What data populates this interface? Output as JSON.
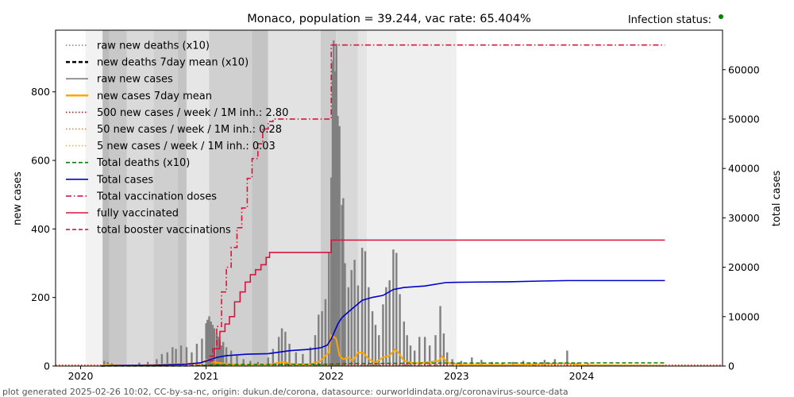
{
  "chart_data": {
    "type": "line",
    "title": "Monaco, population = 39.244, vac rate: 65.404%",
    "status_label": "Infection status:",
    "status_color": "#008000",
    "ylabel_left": "new cases",
    "ylabel_right": "total cases",
    "footer": "plot generated 2025-02-26 10:02, CC-by-sa-nc, origin: dukun.de/corona, datasource: ourworldindata.org/coronavirus-source-data",
    "x_range": [
      "2019-10-20",
      "2025-02-15"
    ],
    "y_left_range": [
      0,
      980
    ],
    "y_right_range": [
      0,
      68000
    ],
    "x_ticks": [
      "2020",
      "2021",
      "2022",
      "2023",
      "2024"
    ],
    "y_left_ticks": [
      "0",
      "200",
      "400",
      "600",
      "800"
    ],
    "y_right_ticks": [
      "0",
      "10000",
      "20000",
      "30000",
      "40000",
      "50000",
      "60000"
    ],
    "legend": [
      {
        "label": "raw new deaths (x10)",
        "color": "#808080",
        "style": "dotted"
      },
      {
        "label": "new deaths 7day mean (x10)",
        "color": "#000000",
        "style": "dashed"
      },
      {
        "label": "raw new cases",
        "color": "#808080",
        "style": "solid"
      },
      {
        "label": "new cases 7day mean",
        "color": "#ffa500",
        "style": "solid"
      },
      {
        "label": "500 new cases / week / 1M inh.: 2.80",
        "color": "#ff0000",
        "style": "dotted"
      },
      {
        "label": "50 new cases / week / 1M inh.: 0.28",
        "color": "#e08020",
        "style": "dotted"
      },
      {
        "label": "5 new cases / week / 1M inh.: 0.03",
        "color": "#f0c000",
        "style": "dotted"
      },
      {
        "label": "Total deaths (x10)",
        "color": "#008000",
        "style": "dashed"
      },
      {
        "label": "Total cases",
        "color": "#0000cc",
        "style": "solid"
      },
      {
        "label": "Total vaccination doses",
        "color": "#dc143c",
        "style": "dashdot"
      },
      {
        "label": "fully vaccinated",
        "color": "#dc143c",
        "style": "solid"
      },
      {
        "label": "total booster vaccinations",
        "color": "#dc143c",
        "style": "dashed"
      }
    ],
    "background_bands": [
      {
        "start": "2020-01-15",
        "end": "2020-03-05",
        "shade": "#f2f2f2"
      },
      {
        "start": "2020-03-05",
        "end": "2020-03-25",
        "shade": "#bbbbbb"
      },
      {
        "start": "2020-03-25",
        "end": "2020-05-15",
        "shade": "#c8c8c8"
      },
      {
        "start": "2020-05-15",
        "end": "2020-08-01",
        "shade": "#dadada"
      },
      {
        "start": "2020-08-01",
        "end": "2020-10-10",
        "shade": "#cfcfcf"
      },
      {
        "start": "2020-10-10",
        "end": "2020-11-05",
        "shade": "#c4c4c4"
      },
      {
        "start": "2020-11-05",
        "end": "2021-01-10",
        "shade": "#e6e6e6"
      },
      {
        "start": "2021-01-10",
        "end": "2021-05-15",
        "shade": "#d0d0d0"
      },
      {
        "start": "2021-05-15",
        "end": "2021-07-01",
        "shade": "#c4c4c4"
      },
      {
        "start": "2021-07-01",
        "end": "2021-12-01",
        "shade": "#e2e2e2"
      },
      {
        "start": "2021-12-01",
        "end": "2022-01-15",
        "shade": "#cccccc"
      },
      {
        "start": "2022-01-15",
        "end": "2022-03-20",
        "shade": "#d8d8d8"
      },
      {
        "start": "2022-03-20",
        "end": "2022-04-15",
        "shade": "#e4e4e4"
      },
      {
        "start": "2022-04-15",
        "end": "2023-01-01",
        "shade": "#efefef"
      }
    ],
    "raw_new_cases": [
      [
        "2020-03-10",
        15
      ],
      [
        "2020-03-20",
        12
      ],
      [
        "2020-04-01",
        8
      ],
      [
        "2020-06-20",
        10
      ],
      [
        "2020-07-15",
        12
      ],
      [
        "2020-08-10",
        20
      ],
      [
        "2020-08-25",
        35
      ],
      [
        "2020-09-10",
        40
      ],
      [
        "2020-09-25",
        55
      ],
      [
        "2020-10-05",
        50
      ],
      [
        "2020-10-20",
        60
      ],
      [
        "2020-11-05",
        55
      ],
      [
        "2020-11-20",
        40
      ],
      [
        "2020-12-05",
        65
      ],
      [
        "2020-12-20",
        80
      ],
      [
        "2021-01-01",
        125
      ],
      [
        "2021-01-05",
        135
      ],
      [
        "2021-01-10",
        145
      ],
      [
        "2021-01-15",
        130
      ],
      [
        "2021-01-20",
        120
      ],
      [
        "2021-01-25",
        110
      ],
      [
        "2021-02-01",
        95
      ],
      [
        "2021-02-05",
        85
      ],
      [
        "2021-02-10",
        75
      ],
      [
        "2021-02-15",
        60
      ],
      [
        "2021-02-20",
        70
      ],
      [
        "2021-03-01",
        55
      ],
      [
        "2021-03-15",
        45
      ],
      [
        "2021-04-01",
        30
      ],
      [
        "2021-04-20",
        20
      ],
      [
        "2021-05-10",
        15
      ],
      [
        "2021-06-01",
        12
      ],
      [
        "2021-07-01",
        25
      ],
      [
        "2021-07-15",
        50
      ],
      [
        "2021-08-01",
        85
      ],
      [
        "2021-08-10",
        110
      ],
      [
        "2021-08-20",
        100
      ],
      [
        "2021-09-01",
        65
      ],
      [
        "2021-09-20",
        40
      ],
      [
        "2021-10-10",
        35
      ],
      [
        "2021-11-01",
        55
      ],
      [
        "2021-11-15",
        90
      ],
      [
        "2021-11-25",
        150
      ],
      [
        "2021-12-05",
        160
      ],
      [
        "2021-12-15",
        195
      ],
      [
        "2021-12-25",
        330
      ],
      [
        "2022-01-01",
        550
      ],
      [
        "2022-01-05",
        890
      ],
      [
        "2022-01-08",
        950
      ],
      [
        "2022-01-12",
        860
      ],
      [
        "2022-01-16",
        940
      ],
      [
        "2022-01-20",
        730
      ],
      [
        "2022-01-25",
        700
      ],
      [
        "2022-02-01",
        470
      ],
      [
        "2022-02-05",
        490
      ],
      [
        "2022-02-10",
        300
      ],
      [
        "2022-02-20",
        230
      ],
      [
        "2022-03-01",
        280
      ],
      [
        "2022-03-10",
        310
      ],
      [
        "2022-03-20",
        235
      ],
      [
        "2022-04-01",
        345
      ],
      [
        "2022-04-10",
        335
      ],
      [
        "2022-04-20",
        230
      ],
      [
        "2022-05-01",
        160
      ],
      [
        "2022-05-10",
        120
      ],
      [
        "2022-05-20",
        90
      ],
      [
        "2022-06-01",
        180
      ],
      [
        "2022-06-10",
        230
      ],
      [
        "2022-06-20",
        250
      ],
      [
        "2022-07-01",
        340
      ],
      [
        "2022-07-10",
        330
      ],
      [
        "2022-07-20",
        210
      ],
      [
        "2022-08-01",
        130
      ],
      [
        "2022-08-10",
        90
      ],
      [
        "2022-08-20",
        60
      ],
      [
        "2022-09-01",
        45
      ],
      [
        "2022-09-15",
        85
      ],
      [
        "2022-10-01",
        85
      ],
      [
        "2022-10-15",
        60
      ],
      [
        "2022-11-01",
        90
      ],
      [
        "2022-11-15",
        175
      ],
      [
        "2022-11-25",
        95
      ],
      [
        "2022-12-05",
        40
      ],
      [
        "2022-12-20",
        20
      ],
      [
        "2023-01-15",
        15
      ],
      [
        "2023-02-15",
        25
      ],
      [
        "2023-03-15",
        18
      ],
      [
        "2023-04-15",
        12
      ],
      [
        "2023-05-15",
        10
      ],
      [
        "2023-06-15",
        12
      ],
      [
        "2023-07-15",
        15
      ],
      [
        "2023-08-15",
        12
      ],
      [
        "2023-09-15",
        18
      ],
      [
        "2023-10-15",
        20
      ],
      [
        "2023-11-20",
        45
      ],
      [
        "2023-12-20",
        10
      ],
      [
        "2024-01-20",
        8
      ],
      [
        "2024-03-20",
        5
      ],
      [
        "2024-06-20",
        4
      ],
      [
        "2024-08-20",
        3
      ]
    ],
    "new_cases_7day_mean": [
      [
        "2020-03-01",
        0
      ],
      [
        "2020-03-20",
        3
      ],
      [
        "2020-06-01",
        1
      ],
      [
        "2020-09-01",
        5
      ],
      [
        "2020-12-20",
        8
      ],
      [
        "2021-01-01",
        18
      ],
      [
        "2021-01-20",
        12
      ],
      [
        "2021-02-15",
        8
      ],
      [
        "2021-03-15",
        5
      ],
      [
        "2021-05-01",
        2
      ],
      [
        "2021-07-01",
        3
      ],
      [
        "2021-08-10",
        12
      ],
      [
        "2021-09-15",
        5
      ],
      [
        "2021-11-01",
        5
      ],
      [
        "2021-12-01",
        15
      ],
      [
        "2021-12-25",
        40
      ],
      [
        "2022-01-01",
        90
      ],
      [
        "2022-01-15",
        80
      ],
      [
        "2022-01-25",
        30
      ],
      [
        "2022-02-05",
        20
      ],
      [
        "2022-02-20",
        25
      ],
      [
        "2022-03-05",
        15
      ],
      [
        "2022-03-20",
        40
      ],
      [
        "2022-04-05",
        38
      ],
      [
        "2022-04-20",
        20
      ],
      [
        "2022-05-10",
        10
      ],
      [
        "2022-06-01",
        25
      ],
      [
        "2022-06-20",
        30
      ],
      [
        "2022-07-05",
        48
      ],
      [
        "2022-07-15",
        40
      ],
      [
        "2022-08-01",
        15
      ],
      [
        "2022-09-01",
        8
      ],
      [
        "2022-10-01",
        10
      ],
      [
        "2022-11-10",
        15
      ],
      [
        "2022-11-20",
        28
      ],
      [
        "2022-12-05",
        10
      ],
      [
        "2023-01-15",
        4
      ],
      [
        "2023-06-01",
        3
      ],
      [
        "2023-11-20",
        8
      ],
      [
        "2024-01-01",
        3
      ],
      [
        "2024-08-31",
        1
      ]
    ],
    "total_cases": [
      [
        "2020-03-01",
        0
      ],
      [
        "2020-04-01",
        95
      ],
      [
        "2020-08-01",
        150
      ],
      [
        "2020-11-01",
        350
      ],
      [
        "2020-12-15",
        650
      ],
      [
        "2021-01-01",
        1000
      ],
      [
        "2021-02-01",
        1750
      ],
      [
        "2021-03-01",
        2100
      ],
      [
        "2021-05-01",
        2400
      ],
      [
        "2021-07-01",
        2500
      ],
      [
        "2021-08-01",
        2800
      ],
      [
        "2021-09-01",
        3100
      ],
      [
        "2021-11-01",
        3400
      ],
      [
        "2021-12-01",
        3700
      ],
      [
        "2021-12-20",
        4200
      ],
      [
        "2022-01-01",
        5500
      ],
      [
        "2022-01-20",
        8500
      ],
      [
        "2022-02-01",
        9800
      ],
      [
        "2022-03-01",
        11500
      ],
      [
        "2022-04-01",
        13300
      ],
      [
        "2022-05-01",
        13900
      ],
      [
        "2022-06-01",
        14300
      ],
      [
        "2022-07-01",
        15500
      ],
      [
        "2022-08-01",
        15900
      ],
      [
        "2022-10-01",
        16200
      ],
      [
        "2022-12-01",
        16900
      ],
      [
        "2023-01-01",
        16950
      ],
      [
        "2023-03-01",
        17000
      ],
      [
        "2023-06-01",
        17050
      ],
      [
        "2023-09-01",
        17200
      ],
      [
        "2023-11-20",
        17300
      ],
      [
        "2024-08-31",
        17300
      ]
    ],
    "total_deaths_x10": [
      [
        "2020-03-01",
        0
      ],
      [
        "2020-11-01",
        10
      ],
      [
        "2021-03-01",
        300
      ],
      [
        "2021-12-01",
        350
      ],
      [
        "2022-03-01",
        500
      ],
      [
        "2022-12-01",
        600
      ],
      [
        "2024-08-31",
        650
      ]
    ],
    "total_vaccination_doses": [
      [
        "2021-01-10",
        1000
      ],
      [
        "2021-01-20",
        3500
      ],
      [
        "2021-02-01",
        8000
      ],
      [
        "2021-02-15",
        15000
      ],
      [
        "2021-03-01",
        20000
      ],
      [
        "2021-03-15",
        24000
      ],
      [
        "2021-04-01",
        28000
      ],
      [
        "2021-04-15",
        32000
      ],
      [
        "2021-05-01",
        38000
      ],
      [
        "2021-05-15",
        42000
      ],
      [
        "2021-06-01",
        45000
      ],
      [
        "2021-06-15",
        48000
      ],
      [
        "2021-07-01",
        49500
      ],
      [
        "2021-07-15",
        50000
      ],
      [
        "2021-12-31",
        50000
      ],
      [
        "2022-01-01",
        65000
      ],
      [
        "2024-08-31",
        65000
      ]
    ],
    "fully_vaccinated": [
      [
        "2021-01-10",
        2000
      ],
      [
        "2021-01-25",
        3500
      ],
      [
        "2021-02-10",
        7000
      ],
      [
        "2021-02-25",
        8500
      ],
      [
        "2021-03-10",
        10000
      ],
      [
        "2021-03-25",
        13000
      ],
      [
        "2021-04-10",
        15000
      ],
      [
        "2021-04-25",
        17000
      ],
      [
        "2021-05-10",
        18500
      ],
      [
        "2021-05-25",
        19500
      ],
      [
        "2021-06-10",
        20500
      ],
      [
        "2021-06-25",
        22000
      ],
      [
        "2021-07-05",
        23000
      ],
      [
        "2021-12-31",
        23000
      ],
      [
        "2022-01-01",
        25500
      ],
      [
        "2024-08-31",
        25500
      ]
    ]
  }
}
